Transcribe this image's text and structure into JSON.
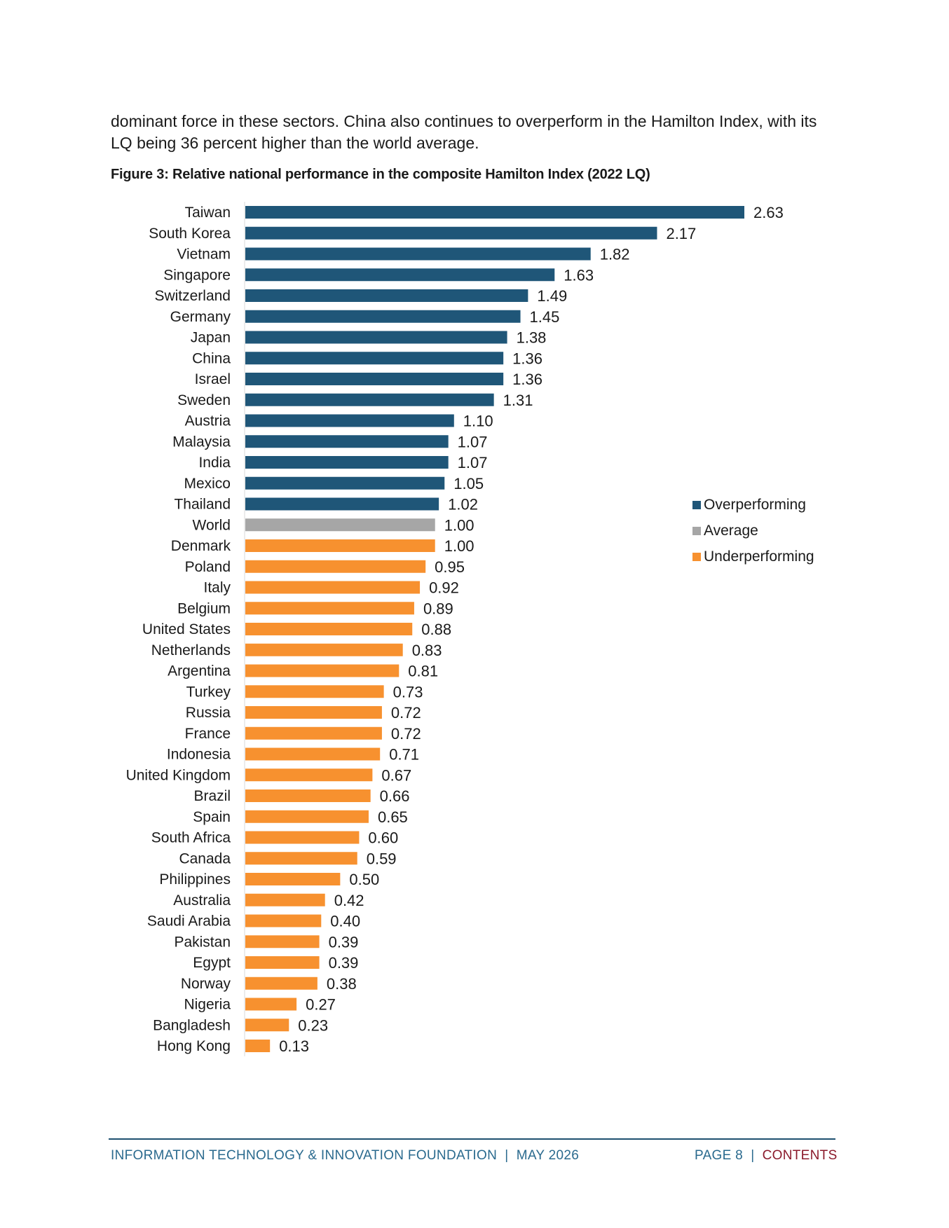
{
  "intro_text": "dominant force in these sectors. China also continues to overperform in the Hamilton Index, with its LQ being 36 percent higher than the world average.",
  "figure_title": "Figure 3: Relative national performance in the composite Hamilton Index (2022 LQ)",
  "colors": {
    "overperforming": "#1f5678",
    "average": "#a6a6a6",
    "underperforming": "#f7912f"
  },
  "legend": [
    {
      "label": "Overperforming",
      "color_key": "overperforming"
    },
    {
      "label": "Average",
      "color_key": "average"
    },
    {
      "label": "Underperforming",
      "color_key": "underperforming"
    }
  ],
  "chart_data": {
    "type": "bar",
    "orientation": "horizontal",
    "categories": [
      "Taiwan",
      "South Korea",
      "Vietnam",
      "Singapore",
      "Switzerland",
      "Germany",
      "Japan",
      "China",
      "Israel",
      "Sweden",
      "Austria",
      "Malaysia",
      "India",
      "Mexico",
      "Thailand",
      "World",
      "Denmark",
      "Poland",
      "Italy",
      "Belgium",
      "United States",
      "Netherlands",
      "Argentina",
      "Turkey",
      "Russia",
      "France",
      "Indonesia",
      "United Kingdom",
      "Brazil",
      "Spain",
      "South Africa",
      "Canada",
      "Philippines",
      "Australia",
      "Saudi Arabia",
      "Pakistan",
      "Egypt",
      "Norway",
      "Nigeria",
      "Bangladesh",
      "Hong Kong"
    ],
    "values": [
      2.63,
      2.17,
      1.82,
      1.63,
      1.49,
      1.45,
      1.38,
      1.36,
      1.36,
      1.31,
      1.1,
      1.07,
      1.07,
      1.05,
      1.02,
      1.0,
      1.0,
      0.95,
      0.92,
      0.89,
      0.88,
      0.83,
      0.81,
      0.73,
      0.72,
      0.72,
      0.71,
      0.67,
      0.66,
      0.65,
      0.6,
      0.59,
      0.5,
      0.42,
      0.4,
      0.39,
      0.39,
      0.38,
      0.27,
      0.23,
      0.13
    ],
    "labels": [
      "2.63",
      "2.17",
      "1.82",
      "1.63",
      "1.49",
      "1.45",
      "1.38",
      "1.36",
      "1.36",
      "1.31",
      "1.10",
      "1.07",
      "1.07",
      "1.05",
      "1.02",
      "1.00",
      "1.00",
      "0.95",
      "0.92",
      "0.89",
      "0.88",
      "0.83",
      "0.81",
      "0.73",
      "0.72",
      "0.72",
      "0.71",
      "0.67",
      "0.66",
      "0.65",
      "0.60",
      "0.59",
      "0.50",
      "0.42",
      "0.40",
      "0.39",
      "0.39",
      "0.38",
      "0.27",
      "0.23",
      "0.13"
    ],
    "groups": [
      "overperforming",
      "overperforming",
      "overperforming",
      "overperforming",
      "overperforming",
      "overperforming",
      "overperforming",
      "overperforming",
      "overperforming",
      "overperforming",
      "overperforming",
      "overperforming",
      "overperforming",
      "overperforming",
      "overperforming",
      "average",
      "underperforming",
      "underperforming",
      "underperforming",
      "underperforming",
      "underperforming",
      "underperforming",
      "underperforming",
      "underperforming",
      "underperforming",
      "underperforming",
      "underperforming",
      "underperforming",
      "underperforming",
      "underperforming",
      "underperforming",
      "underperforming",
      "underperforming",
      "underperforming",
      "underperforming",
      "underperforming",
      "underperforming",
      "underperforming",
      "underperforming",
      "underperforming",
      "underperforming"
    ],
    "xlim": [
      0,
      2.63
    ],
    "grid": false,
    "legend_position": "right"
  },
  "footer": {
    "org": "INFORMATION TECHNOLOGY & INNOVATION FOUNDATION",
    "separator": "|",
    "date": "MAY 2026",
    "page": "PAGE 8",
    "contents": "CONTENTS"
  }
}
